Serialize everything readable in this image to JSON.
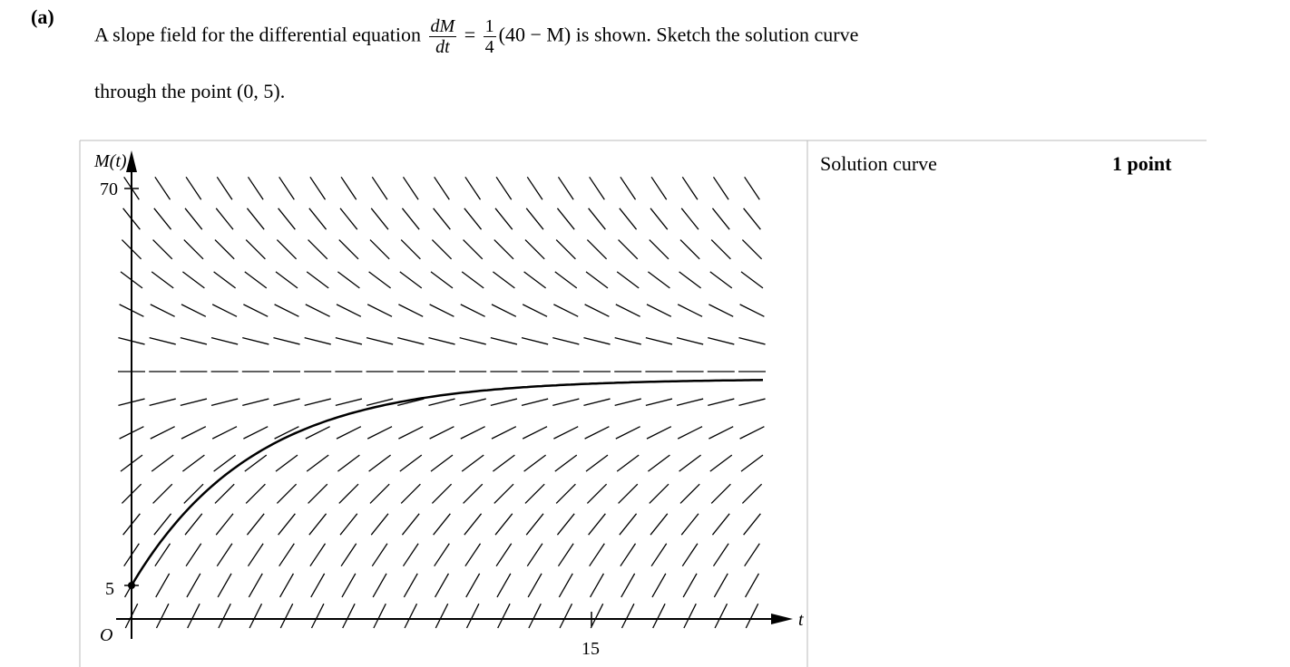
{
  "part": "(a)",
  "prompt": {
    "before": "A slope field for the differential equation",
    "lhs_num": "dM",
    "lhs_den": "dt",
    "equals": "=",
    "coef_num": "1",
    "coef_den": "4",
    "rhs": "(40 − M)",
    "after": "is shown. Sketch the solution curve",
    "line2": "through the point",
    "point": "(0, 5)",
    "end": "."
  },
  "graph": {
    "y_axis_label": "M(t)",
    "x_axis_label": "t",
    "origin_label": "O",
    "y_tick_top": "70",
    "y_tick_bottom": "5",
    "x_tick": "15"
  },
  "scoring": {
    "criterion": "Solution curve",
    "points": "1 point"
  }
}
